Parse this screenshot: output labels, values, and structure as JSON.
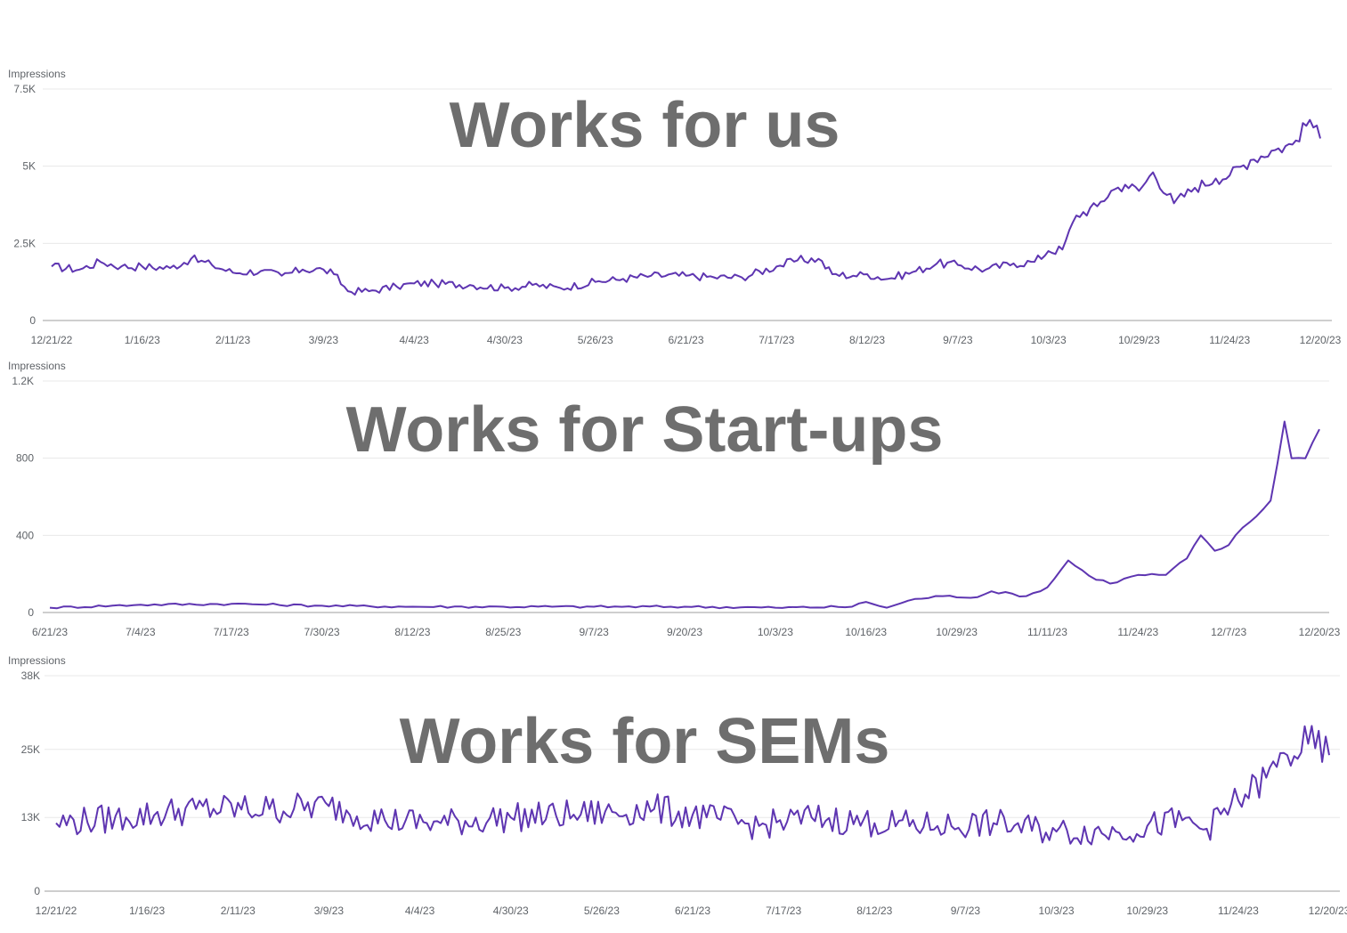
{
  "chart_data": [
    {
      "type": "line",
      "overlay_text": "Works for us",
      "ylabel": "Impressions",
      "ylim": [
        0,
        7500
      ],
      "yticks": [
        {
          "value": 0,
          "label": "0"
        },
        {
          "value": 2500,
          "label": "2.5K"
        },
        {
          "value": 5000,
          "label": "5K"
        },
        {
          "value": 7500,
          "label": "7.5K"
        }
      ],
      "xtick_labels": [
        "12/21/22",
        "1/16/23",
        "2/11/23",
        "3/9/23",
        "4/4/23",
        "4/30/23",
        "5/26/23",
        "6/21/23",
        "7/17/23",
        "8/12/23",
        "9/7/23",
        "10/3/23",
        "10/29/23",
        "11/24/23",
        "12/20/23"
      ],
      "grid": true,
      "color": "#5e35b1",
      "series": [
        {
          "name": "",
          "anchors": [
            [
              "12/21/22",
              1750
            ],
            [
              "12/29/22",
              1650
            ],
            [
              "1/4/23",
              1900
            ],
            [
              "1/10/23",
              1750
            ],
            [
              "1/16/23",
              1750
            ],
            [
              "1/24/23",
              1700
            ],
            [
              "1/30/23",
              2000
            ],
            [
              "2/5/23",
              1800
            ],
            [
              "2/11/23",
              1550
            ],
            [
              "2/19/23",
              1600
            ],
            [
              "2/25/23",
              1450
            ],
            [
              "3/3/23",
              1650
            ],
            [
              "3/9/23",
              1650
            ],
            [
              "3/12/23",
              1500
            ],
            [
              "3/16/23",
              950
            ],
            [
              "3/22/23",
              950
            ],
            [
              "3/30/23",
              1100
            ],
            [
              "4/4/23",
              1200
            ],
            [
              "4/10/23",
              1200
            ],
            [
              "4/20/23",
              1150
            ],
            [
              "4/30/23",
              1050
            ],
            [
              "5/8/23",
              1150
            ],
            [
              "5/16/23",
              1050
            ],
            [
              "5/26/23",
              1250
            ],
            [
              "6/3/23",
              1350
            ],
            [
              "6/11/23",
              1450
            ],
            [
              "6/21/23",
              1450
            ],
            [
              "6/29/23",
              1400
            ],
            [
              "7/7/23",
              1400
            ],
            [
              "7/17/23",
              1750
            ],
            [
              "7/23/23",
              1950
            ],
            [
              "7/29/23",
              2000
            ],
            [
              "8/2/23",
              1500
            ],
            [
              "8/8/23",
              1450
            ],
            [
              "8/12/23",
              1500
            ],
            [
              "8/18/23",
              1350
            ],
            [
              "8/26/23",
              1600
            ],
            [
              "9/1/23",
              1850
            ],
            [
              "9/7/23",
              1800
            ],
            [
              "9/15/23",
              1650
            ],
            [
              "9/23/23",
              1850
            ],
            [
              "9/29/23",
              1900
            ],
            [
              "10/3/23",
              2250
            ],
            [
              "10/7/23",
              2300
            ],
            [
              "10/11/23",
              3400
            ],
            [
              "10/17/23",
              3700
            ],
            [
              "10/21/23",
              4200
            ],
            [
              "10/25/23",
              4400
            ],
            [
              "10/29/23",
              4200
            ],
            [
              "11/2/23",
              4800
            ],
            [
              "11/8/23",
              3800
            ],
            [
              "11/14/23",
              4300
            ],
            [
              "11/20/23",
              4600
            ],
            [
              "11/24/23",
              4700
            ],
            [
              "11/30/23",
              5200
            ],
            [
              "12/6/23",
              5500
            ],
            [
              "12/12/23",
              5700
            ],
            [
              "12/17/23",
              6500
            ],
            [
              "12/20/23",
              5900
            ]
          ]
        }
      ],
      "noise": 170
    },
    {
      "type": "line",
      "overlay_text": "Works for Start-ups",
      "ylabel": "Impressions",
      "ylim": [
        0,
        1200
      ],
      "yticks": [
        {
          "value": 0,
          "label": "0"
        },
        {
          "value": 400,
          "label": "400"
        },
        {
          "value": 800,
          "label": "800"
        },
        {
          "value": 1200,
          "label": "1.2K"
        }
      ],
      "xtick_labels": [
        "6/21/23",
        "7/4/23",
        "7/17/23",
        "7/30/23",
        "8/12/23",
        "8/25/23",
        "9/7/23",
        "9/20/23",
        "10/3/23",
        "10/16/23",
        "10/29/23",
        "11/11/23",
        "11/24/23",
        "12/7/23",
        "12/20/23"
      ],
      "grid": true,
      "color": "#5e35b1",
      "series": [
        {
          "name": "",
          "anchors": [
            [
              "6/21/23",
              25
            ],
            [
              "7/4/23",
              40
            ],
            [
              "7/17/23",
              45
            ],
            [
              "7/30/23",
              35
            ],
            [
              "8/12/23",
              30
            ],
            [
              "8/25/23",
              30
            ],
            [
              "9/7/23",
              30
            ],
            [
              "9/20/23",
              30
            ],
            [
              "10/3/23",
              25
            ],
            [
              "10/14/23",
              30
            ],
            [
              "10/16/23",
              55
            ],
            [
              "10/19/23",
              25
            ],
            [
              "10/23/23",
              70
            ],
            [
              "10/27/23",
              85
            ],
            [
              "11/1/23",
              80
            ],
            [
              "11/3/23",
              110
            ],
            [
              "11/8/23",
              85
            ],
            [
              "11/11/23",
              130
            ],
            [
              "11/14/23",
              270
            ],
            [
              "11/17/23",
              190
            ],
            [
              "11/20/23",
              150
            ],
            [
              "11/24/23",
              195
            ],
            [
              "11/28/23",
              195
            ],
            [
              "12/1/23",
              280
            ],
            [
              "12/3/23",
              400
            ],
            [
              "12/5/23",
              320
            ],
            [
              "12/7/23",
              350
            ],
            [
              "12/9/23",
              440
            ],
            [
              "12/11/23",
              500
            ],
            [
              "12/13/23",
              580
            ],
            [
              "12/15/23",
              990
            ],
            [
              "12/16/23",
              800
            ],
            [
              "12/18/23",
              800
            ],
            [
              "12/20/23",
              950
            ]
          ]
        }
      ],
      "noise": 10
    },
    {
      "type": "line",
      "overlay_text": "Works for SEMs",
      "ylabel": "Impressions",
      "ylim": [
        0,
        38000
      ],
      "yticks": [
        {
          "value": 0,
          "label": "0"
        },
        {
          "value": 13000,
          "label": "13K"
        },
        {
          "value": 25000,
          "label": "25K"
        },
        {
          "value": 38000,
          "label": "38K"
        }
      ],
      "xtick_labels": [
        "12/21/22",
        "1/16/23",
        "2/11/23",
        "3/9/23",
        "4/4/23",
        "4/30/23",
        "5/26/23",
        "6/21/23",
        "7/17/23",
        "8/12/23",
        "9/7/23",
        "10/3/23",
        "10/29/23",
        "11/24/23",
        "12/20/23"
      ],
      "grid": true,
      "color": "#5e35b1",
      "series": [
        {
          "name": "",
          "anchors": [
            [
              "12/21/22",
              12000
            ],
            [
              "1/10/23",
              13000
            ],
            [
              "1/30/23",
              14500
            ],
            [
              "2/20/23",
              14500
            ],
            [
              "3/9/23",
              15000
            ],
            [
              "3/25/23",
              12500
            ],
            [
              "4/10/23",
              12000
            ],
            [
              "4/30/23",
              13000
            ],
            [
              "5/20/23",
              13500
            ],
            [
              "6/10/23",
              14500
            ],
            [
              "6/25/23",
              13000
            ],
            [
              "7/10/23",
              11500
            ],
            [
              "7/25/23",
              13000
            ],
            [
              "8/12/23",
              12000
            ],
            [
              "8/30/23",
              11500
            ],
            [
              "9/15/23",
              12000
            ],
            [
              "10/3/23",
              10500
            ],
            [
              "10/20/23",
              10500
            ],
            [
              "11/8/23",
              12500
            ],
            [
              "11/15/23",
              11000
            ],
            [
              "11/24/23",
              16000
            ],
            [
              "12/2/23",
              20000
            ],
            [
              "12/8/23",
              24000
            ],
            [
              "12/14/23",
              26000
            ],
            [
              "12/20/23",
              24000
            ]
          ]
        }
      ],
      "noise": 2800
    }
  ]
}
